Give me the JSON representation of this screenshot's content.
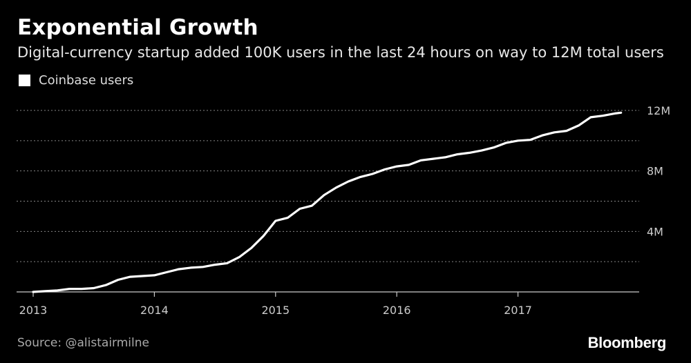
{
  "chart_data": {
    "type": "line",
    "title": "Exponential Growth",
    "subtitle": "Digital-currency startup added 100K users in the last 24 hours on way to 12M total users",
    "legend": [
      "Coinbase users"
    ],
    "legend_position": "top-left",
    "xlabel": "",
    "ylabel": "",
    "x_ticks": [
      "2013",
      "2014",
      "2015",
      "2016",
      "2017"
    ],
    "y_ticks": [
      {
        "value": 4,
        "label": "4M"
      },
      {
        "value": 8,
        "label": "8M"
      },
      {
        "value": 12,
        "label": "12M"
      }
    ],
    "grid_values": [
      2,
      4,
      6,
      8,
      10,
      12
    ],
    "xlim": [
      2013.0,
      2018.0
    ],
    "ylim": [
      0,
      12
    ],
    "unit": "millions of users",
    "series": [
      {
        "name": "Coinbase users",
        "color": "#ffffff",
        "x": [
          2013.0,
          2013.1,
          2013.2,
          2013.3,
          2013.4,
          2013.5,
          2013.6,
          2013.7,
          2013.8,
          2013.9,
          2014.0,
          2014.1,
          2014.2,
          2014.3,
          2014.4,
          2014.5,
          2014.6,
          2014.7,
          2014.8,
          2014.9,
          2015.0,
          2015.1,
          2015.2,
          2015.3,
          2015.4,
          2015.5,
          2015.6,
          2015.7,
          2015.8,
          2015.9,
          2016.0,
          2016.1,
          2016.2,
          2016.3,
          2016.4,
          2016.5,
          2016.6,
          2016.7,
          2016.8,
          2016.9,
          2017.0,
          2017.1,
          2017.2,
          2017.3,
          2017.4,
          2017.5,
          2017.6,
          2017.7,
          2017.8,
          2017.85
        ],
        "values": [
          0.0,
          0.05,
          0.1,
          0.2,
          0.2,
          0.25,
          0.45,
          0.8,
          1.0,
          1.05,
          1.1,
          1.3,
          1.5,
          1.6,
          1.65,
          1.8,
          1.9,
          2.3,
          2.9,
          3.7,
          4.7,
          4.9,
          5.5,
          5.7,
          6.4,
          6.9,
          7.3,
          7.6,
          7.8,
          8.1,
          8.3,
          8.4,
          8.7,
          8.8,
          8.9,
          9.1,
          9.2,
          9.35,
          9.55,
          9.85,
          10.0,
          10.05,
          10.35,
          10.55,
          10.65,
          11.0,
          11.55,
          11.65,
          11.8,
          11.85
        ]
      }
    ]
  },
  "footer": {
    "source": "Source: @alistairmilne",
    "brand": "Bloomberg"
  }
}
